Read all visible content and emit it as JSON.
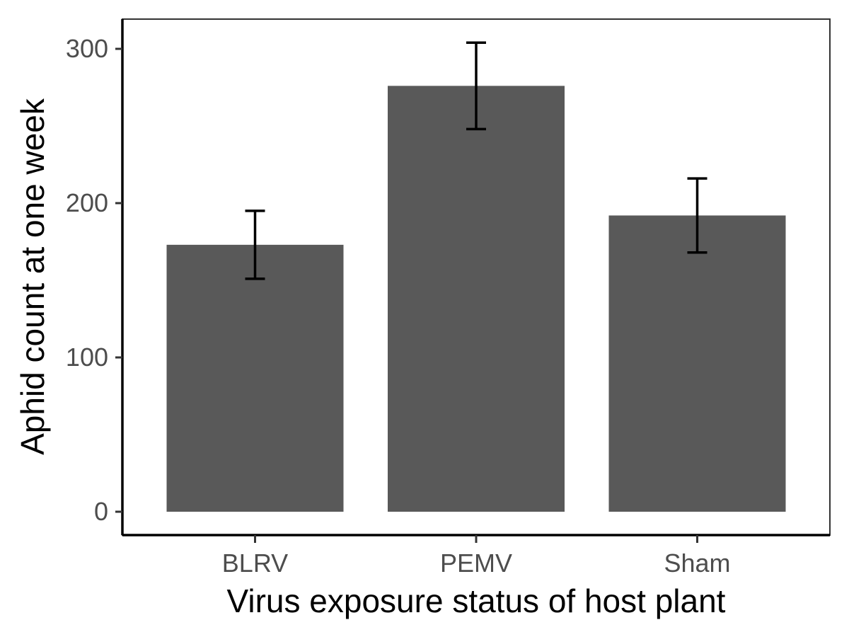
{
  "chart_data": {
    "type": "bar",
    "title": "",
    "xlabel": "Virus exposure status of host plant",
    "ylabel": "Aphid count at one week",
    "categories": [
      "BLRV",
      "PEMV",
      "Sham"
    ],
    "values": [
      173,
      276,
      192
    ],
    "error_bars": [
      {
        "lower": 151,
        "upper": 195
      },
      {
        "lower": 248,
        "upper": 304
      },
      {
        "lower": 168,
        "upper": 216
      }
    ],
    "ylim": [
      -15,
      320
    ],
    "yticks": [
      0,
      100,
      200,
      300
    ],
    "grid": false,
    "legend": "none",
    "bar_color": "#595959",
    "errorbar_color": "#000000",
    "panel_border_color": "#333333"
  }
}
